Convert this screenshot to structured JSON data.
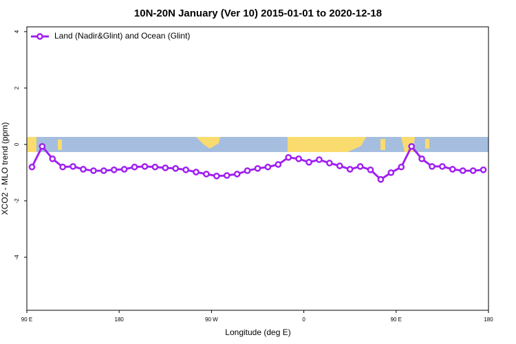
{
  "chart_data": {
    "type": "line",
    "title": "10N-20N January (Ver 10)   2015-01-01 to 2020-12-18",
    "x_label": "Longitude (deg E)",
    "y_label": "XCO2 - MLO trend (ppm)",
    "x": [
      95,
      105,
      115,
      125,
      135,
      145,
      155,
      165,
      175,
      185,
      195,
      205,
      215,
      225,
      235,
      245,
      255,
      265,
      275,
      285,
      295,
      305,
      315,
      325,
      335,
      345,
      355,
      365,
      375,
      385,
      395,
      405,
      415,
      425,
      435,
      445,
      455,
      465,
      475,
      485,
      495,
      505,
      515,
      525,
      535
    ],
    "series": [
      {
        "name": "Land (Nadir&Glint) and Ocean (Glint)",
        "color": "#a020f0",
        "values": [
          -0.8,
          -0.07,
          -0.51,
          -0.8,
          -0.78,
          -0.88,
          -0.93,
          -0.93,
          -0.9,
          -0.88,
          -0.8,
          -0.78,
          -0.8,
          -0.83,
          -0.85,
          -0.9,
          -0.98,
          -1.05,
          -1.12,
          -1.1,
          -1.05,
          -0.93,
          -0.85,
          -0.8,
          -0.71,
          -0.46,
          -0.51,
          -0.63,
          -0.54,
          -0.66,
          -0.76,
          -0.88,
          -0.78,
          -0.9,
          -1.24,
          -1.0,
          -0.8,
          -0.07,
          -0.51,
          -0.78,
          -0.78,
          -0.88,
          -0.93,
          -0.93,
          -0.9
        ]
      }
    ],
    "xlim": [
      90,
      540
    ],
    "xticks": [
      {
        "value": 90,
        "label": "90 E"
      },
      {
        "value": 180,
        "label": "180"
      },
      {
        "value": 270,
        "label": "90 W"
      },
      {
        "value": 360,
        "label": "0"
      },
      {
        "value": 450,
        "label": "90 E"
      },
      {
        "value": 540,
        "label": "180"
      }
    ],
    "ylim": [
      -5.88,
      4.17
    ],
    "yticks": [
      4,
      2,
      0,
      -2,
      -4
    ],
    "legend": "top-left"
  }
}
